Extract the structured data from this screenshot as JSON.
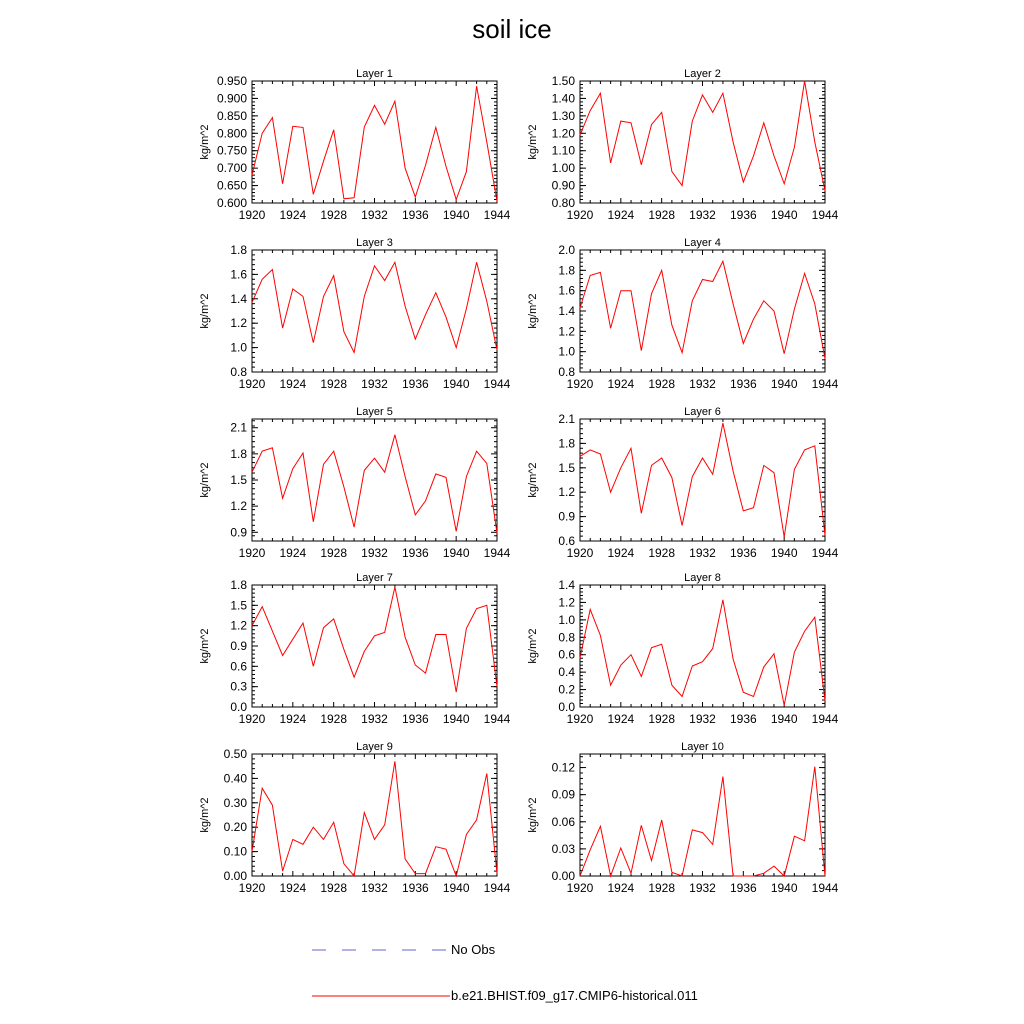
{
  "title": "soil ice",
  "colors": {
    "model_line": "#ff0000",
    "obs_line": "#6666cc",
    "axis": "#000000"
  },
  "legend": {
    "obs_label": "No Obs",
    "model_label": "b.e21.BHIST.f09_g17.CMIP6-historical.011"
  },
  "chart_data": [
    {
      "type": "line",
      "title": "Layer 1",
      "ylabel": "kg/m^2",
      "xlim": [
        1920,
        1944
      ],
      "ylim": [
        0.6,
        0.95
      ],
      "xticks": [
        "1920",
        "1924",
        "1928",
        "1932",
        "1936",
        "1940",
        "1944"
      ],
      "yticks": [
        "0.600",
        "0.650",
        "0.700",
        "0.750",
        "0.800",
        "0.850",
        "0.900",
        "0.950"
      ],
      "x": [
        1920,
        1921,
        1922,
        1923,
        1924,
        1925,
        1926,
        1927,
        1928,
        1929,
        1930,
        1931,
        1932,
        1933,
        1934,
        1935,
        1936,
        1937,
        1938,
        1939,
        1940,
        1941,
        1942,
        1943,
        1944
      ],
      "series": [
        {
          "name": "b.e21.BHIST.f09_g17.CMIP6-historical.011",
          "values": [
            0.68,
            0.8,
            0.845,
            0.655,
            0.82,
            0.817,
            0.625,
            0.72,
            0.81,
            0.612,
            0.615,
            0.818,
            0.88,
            0.826,
            0.892,
            0.7,
            0.617,
            0.708,
            0.817,
            0.705,
            0.61,
            0.69,
            0.935,
            0.775,
            0.605
          ]
        }
      ]
    },
    {
      "type": "line",
      "title": "Layer 2",
      "ylabel": "kg/m^2",
      "xlim": [
        1920,
        1944
      ],
      "ylim": [
        0.8,
        1.5
      ],
      "xticks": [
        "1920",
        "1924",
        "1928",
        "1932",
        "1936",
        "1940",
        "1944"
      ],
      "yticks": [
        "0.80",
        "0.90",
        "1.00",
        "1.10",
        "1.20",
        "1.30",
        "1.40",
        "1.50"
      ],
      "x": [
        1920,
        1921,
        1922,
        1923,
        1924,
        1925,
        1926,
        1927,
        1928,
        1929,
        1930,
        1931,
        1932,
        1933,
        1934,
        1935,
        1936,
        1937,
        1938,
        1939,
        1940,
        1941,
        1942,
        1943,
        1944
      ],
      "series": [
        {
          "name": "b.e21.BHIST.f09_g17.CMIP6-historical.011",
          "values": [
            1.19,
            1.33,
            1.43,
            1.03,
            1.27,
            1.26,
            1.02,
            1.25,
            1.32,
            0.98,
            0.9,
            1.27,
            1.42,
            1.32,
            1.43,
            1.15,
            0.92,
            1.07,
            1.26,
            1.07,
            0.91,
            1.12,
            1.5,
            1.15,
            0.87
          ]
        }
      ]
    },
    {
      "type": "line",
      "title": "Layer 3",
      "ylabel": "kg/m^2",
      "xlim": [
        1920,
        1944
      ],
      "ylim": [
        0.8,
        1.8
      ],
      "xticks": [
        "1920",
        "1924",
        "1928",
        "1932",
        "1936",
        "1940",
        "1944"
      ],
      "yticks": [
        "0.8",
        "1.0",
        "1.2",
        "1.4",
        "1.6",
        "1.8"
      ],
      "x": [
        1920,
        1921,
        1922,
        1923,
        1924,
        1925,
        1926,
        1927,
        1928,
        1929,
        1930,
        1931,
        1932,
        1933,
        1934,
        1935,
        1936,
        1937,
        1938,
        1939,
        1940,
        1941,
        1942,
        1943,
        1944
      ],
      "series": [
        {
          "name": "b.e21.BHIST.f09_g17.CMIP6-historical.011",
          "values": [
            1.37,
            1.56,
            1.64,
            1.16,
            1.48,
            1.42,
            1.04,
            1.42,
            1.59,
            1.13,
            0.96,
            1.42,
            1.67,
            1.55,
            1.7,
            1.34,
            1.07,
            1.27,
            1.45,
            1.25,
            1.0,
            1.32,
            1.7,
            1.38,
            0.98
          ]
        }
      ]
    },
    {
      "type": "line",
      "title": "Layer 4",
      "ylabel": "kg/m^2",
      "xlim": [
        1920,
        1944
      ],
      "ylim": [
        0.8,
        2.0
      ],
      "xticks": [
        "1920",
        "1924",
        "1928",
        "1932",
        "1936",
        "1940",
        "1944"
      ],
      "yticks": [
        "0.8",
        "1.0",
        "1.2",
        "1.4",
        "1.6",
        "1.8",
        "2.0"
      ],
      "x": [
        1920,
        1921,
        1922,
        1923,
        1924,
        1925,
        1926,
        1927,
        1928,
        1929,
        1930,
        1931,
        1932,
        1933,
        1934,
        1935,
        1936,
        1937,
        1938,
        1939,
        1940,
        1941,
        1942,
        1943,
        1944
      ],
      "series": [
        {
          "name": "b.e21.BHIST.f09_g17.CMIP6-historical.011",
          "values": [
            1.43,
            1.75,
            1.78,
            1.23,
            1.6,
            1.6,
            1.01,
            1.57,
            1.8,
            1.26,
            0.99,
            1.5,
            1.71,
            1.69,
            1.89,
            1.47,
            1.08,
            1.32,
            1.5,
            1.4,
            0.98,
            1.42,
            1.77,
            1.47,
            0.93
          ]
        }
      ]
    },
    {
      "type": "line",
      "title": "Layer 5",
      "ylabel": "kg/m^2",
      "xlim": [
        1920,
        1944
      ],
      "ylim": [
        0.8,
        2.2
      ],
      "xticks": [
        "1920",
        "1924",
        "1928",
        "1932",
        "1936",
        "1940",
        "1944"
      ],
      "yticks": [
        "0.9",
        "1.2",
        "1.5",
        "1.8",
        "2.1"
      ],
      "x": [
        1920,
        1921,
        1922,
        1923,
        1924,
        1925,
        1926,
        1927,
        1928,
        1929,
        1930,
        1931,
        1932,
        1933,
        1934,
        1935,
        1936,
        1937,
        1938,
        1939,
        1940,
        1941,
        1942,
        1943,
        1944
      ],
      "series": [
        {
          "name": "b.e21.BHIST.f09_g17.CMIP6-historical.011",
          "values": [
            1.59,
            1.83,
            1.87,
            1.29,
            1.63,
            1.81,
            1.02,
            1.68,
            1.83,
            1.42,
            0.96,
            1.61,
            1.75,
            1.59,
            2.02,
            1.54,
            1.1,
            1.26,
            1.57,
            1.53,
            0.91,
            1.54,
            1.83,
            1.69,
            0.89
          ]
        }
      ]
    },
    {
      "type": "line",
      "title": "Layer 6",
      "ylabel": "kg/m^2",
      "xlim": [
        1920,
        1944
      ],
      "ylim": [
        0.6,
        2.1
      ],
      "xticks": [
        "1920",
        "1924",
        "1928",
        "1932",
        "1936",
        "1940",
        "1944"
      ],
      "yticks": [
        "0.6",
        "0.9",
        "1.2",
        "1.5",
        "1.8",
        "2.1"
      ],
      "x": [
        1920,
        1921,
        1922,
        1923,
        1924,
        1925,
        1926,
        1927,
        1928,
        1929,
        1930,
        1931,
        1932,
        1933,
        1934,
        1935,
        1936,
        1937,
        1938,
        1939,
        1940,
        1941,
        1942,
        1943,
        1944
      ],
      "series": [
        {
          "name": "b.e21.BHIST.f09_g17.CMIP6-historical.011",
          "values": [
            1.64,
            1.72,
            1.67,
            1.2,
            1.5,
            1.74,
            0.94,
            1.53,
            1.62,
            1.38,
            0.79,
            1.39,
            1.62,
            1.42,
            2.05,
            1.46,
            0.97,
            1.01,
            1.53,
            1.44,
            0.65,
            1.48,
            1.72,
            1.77,
            0.67
          ]
        }
      ]
    },
    {
      "type": "line",
      "title": "Layer 7",
      "ylabel": "kg/m^2",
      "xlim": [
        1920,
        1944
      ],
      "ylim": [
        0.0,
        1.8
      ],
      "xticks": [
        "1920",
        "1924",
        "1928",
        "1932",
        "1936",
        "1940",
        "1944"
      ],
      "yticks": [
        "0.0",
        "0.3",
        "0.6",
        "0.9",
        "1.2",
        "1.5",
        "1.8"
      ],
      "x": [
        1920,
        1921,
        1922,
        1923,
        1924,
        1925,
        1926,
        1927,
        1928,
        1929,
        1930,
        1931,
        1932,
        1933,
        1934,
        1935,
        1936,
        1937,
        1938,
        1939,
        1940,
        1941,
        1942,
        1943,
        1944
      ],
      "series": [
        {
          "name": "b.e21.BHIST.f09_g17.CMIP6-historical.011",
          "values": [
            1.2,
            1.48,
            1.12,
            0.76,
            1.0,
            1.24,
            0.6,
            1.17,
            1.3,
            0.85,
            0.44,
            0.82,
            1.05,
            1.1,
            1.77,
            1.03,
            0.62,
            0.5,
            1.07,
            1.07,
            0.22,
            1.16,
            1.45,
            1.5,
            0.3
          ]
        }
      ]
    },
    {
      "type": "line",
      "title": "Layer 8",
      "ylabel": "kg/m^2",
      "xlim": [
        1920,
        1944
      ],
      "ylim": [
        0.0,
        1.4
      ],
      "xticks": [
        "1920",
        "1924",
        "1928",
        "1932",
        "1936",
        "1940",
        "1944"
      ],
      "yticks": [
        "0.0",
        "0.2",
        "0.4",
        "0.6",
        "0.8",
        "1.0",
        "1.2",
        "1.4"
      ],
      "x": [
        1920,
        1921,
        1922,
        1923,
        1924,
        1925,
        1926,
        1927,
        1928,
        1929,
        1930,
        1931,
        1932,
        1933,
        1934,
        1935,
        1936,
        1937,
        1938,
        1939,
        1940,
        1941,
        1942,
        1943,
        1944
      ],
      "series": [
        {
          "name": "b.e21.BHIST.f09_g17.CMIP6-historical.011",
          "values": [
            0.56,
            1.12,
            0.82,
            0.25,
            0.48,
            0.6,
            0.35,
            0.68,
            0.72,
            0.25,
            0.12,
            0.47,
            0.52,
            0.67,
            1.23,
            0.55,
            0.17,
            0.12,
            0.46,
            0.61,
            0.02,
            0.63,
            0.87,
            1.03,
            0.07
          ]
        }
      ]
    },
    {
      "type": "line",
      "title": "Layer 9",
      "ylabel": "kg/m^2",
      "xlim": [
        1920,
        1944
      ],
      "ylim": [
        0.0,
        0.5
      ],
      "xticks": [
        "1920",
        "1924",
        "1928",
        "1932",
        "1936",
        "1940",
        "1944"
      ],
      "yticks": [
        "0.00",
        "0.10",
        "0.20",
        "0.30",
        "0.40",
        "0.50"
      ],
      "x": [
        1920,
        1921,
        1922,
        1923,
        1924,
        1925,
        1926,
        1927,
        1928,
        1929,
        1930,
        1931,
        1932,
        1933,
        1934,
        1935,
        1936,
        1937,
        1938,
        1939,
        1940,
        1941,
        1942,
        1943,
        1944
      ],
      "series": [
        {
          "name": "b.e21.BHIST.f09_g17.CMIP6-historical.011",
          "values": [
            0.1,
            0.36,
            0.29,
            0.02,
            0.15,
            0.13,
            0.2,
            0.15,
            0.22,
            0.05,
            0.0,
            0.26,
            0.15,
            0.21,
            0.47,
            0.07,
            0.01,
            0.01,
            0.12,
            0.11,
            0.0,
            0.17,
            0.23,
            0.42,
            0.01
          ]
        }
      ]
    },
    {
      "type": "line",
      "title": "Layer 10",
      "ylabel": "kg/m^2",
      "xlim": [
        1920,
        1944
      ],
      "ylim": [
        0.0,
        0.135
      ],
      "xticks": [
        "1920",
        "1924",
        "1928",
        "1932",
        "1936",
        "1940",
        "1944"
      ],
      "yticks": [
        "0.00",
        "0.03",
        "0.06",
        "0.09",
        "0.12"
      ],
      "x": [
        1920,
        1921,
        1922,
        1923,
        1924,
        1925,
        1926,
        1927,
        1928,
        1929,
        1930,
        1931,
        1932,
        1933,
        1934,
        1935,
        1936,
        1937,
        1938,
        1939,
        1940,
        1941,
        1942,
        1943,
        1944
      ],
      "series": [
        {
          "name": "b.e21.BHIST.f09_g17.CMIP6-historical.011",
          "values": [
            0.0,
            0.029,
            0.055,
            0.0,
            0.031,
            0.003,
            0.056,
            0.017,
            0.062,
            0.004,
            0.0,
            0.051,
            0.048,
            0.035,
            0.11,
            0.0,
            0.0,
            0.0,
            0.003,
            0.011,
            0.0,
            0.044,
            0.039,
            0.121,
            0.0
          ]
        }
      ]
    }
  ]
}
